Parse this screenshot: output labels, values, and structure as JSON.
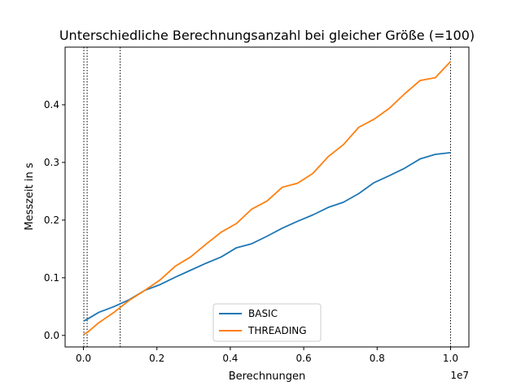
{
  "chart_data": {
    "type": "line",
    "title": "Unterschiedliche Berechnungsanzahl bei gleicher Größe (=100)",
    "xlabel": "Berechnungen",
    "ylabel": "Messzeit in s",
    "x_offset_label": "1e7",
    "xlim": [
      -500000,
      10500000
    ],
    "ylim": [
      -0.02,
      0.5
    ],
    "x_ticks": [
      0,
      2000000,
      4000000,
      6000000,
      8000000,
      10000000
    ],
    "x_tick_labels": [
      "0.0",
      "0.2",
      "0.4",
      "0.6",
      "0.8",
      "1.0"
    ],
    "y_ticks": [
      0.0,
      0.1,
      0.2,
      0.3,
      0.4
    ],
    "y_tick_labels": [
      "0.0",
      "0.1",
      "0.2",
      "0.3",
      "0.4"
    ],
    "vlines": [
      10000,
      100000,
      1000000,
      10000000
    ],
    "grid": false,
    "legend_position": "lower center",
    "x": [
      10000,
      100000,
      416667,
      833333,
      1250000,
      1666667,
      2083333,
      2500000,
      2916667,
      3333333,
      3750000,
      4166667,
      4583333,
      5000000,
      5416667,
      5833333,
      6250000,
      6666667,
      7083333,
      7500000,
      7916667,
      8333333,
      8750000,
      9166667,
      9583333,
      10000000
    ],
    "series": [
      {
        "name": "BASIC",
        "color": "#1f77b4",
        "values": [
          0.025,
          0.028,
          0.04,
          0.05,
          0.062,
          0.078,
          0.088,
          0.101,
          0.113,
          0.125,
          0.136,
          0.152,
          0.159,
          0.172,
          0.186,
          0.198,
          0.209,
          0.222,
          0.231,
          0.246,
          0.265,
          0.277,
          0.29,
          0.306,
          0.314,
          0.317
        ]
      },
      {
        "name": "THREADING",
        "color": "#ff7f0e",
        "values": [
          0.002,
          0.005,
          0.022,
          0.04,
          0.061,
          0.078,
          0.096,
          0.12,
          0.136,
          0.158,
          0.179,
          0.194,
          0.219,
          0.233,
          0.257,
          0.264,
          0.281,
          0.31,
          0.331,
          0.361,
          0.375,
          0.394,
          0.419,
          0.442,
          0.447,
          0.475
        ]
      }
    ]
  }
}
